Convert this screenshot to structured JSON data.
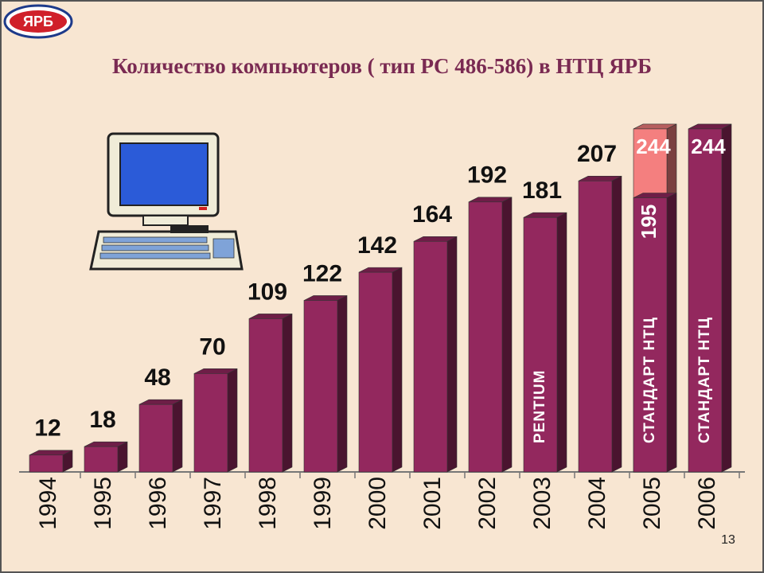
{
  "logo": "ЯРБ",
  "page_number": "13",
  "chart_data": {
    "type": "bar3d",
    "title": "Количество компьютеров ( тип PC 486-586) в НТЦ ЯРБ",
    "categories": [
      "1994",
      "1995",
      "1996",
      "1997",
      "1998",
      "1999",
      "2000",
      "2001",
      "2002",
      "2003",
      "2004",
      "2005",
      "2006"
    ],
    "values": [
      12,
      18,
      48,
      70,
      109,
      122,
      142,
      164,
      192,
      181,
      207,
      244,
      244
    ],
    "lower_values": [
      null,
      null,
      null,
      null,
      null,
      null,
      null,
      null,
      null,
      null,
      null,
      195,
      null
    ],
    "bar_labels": [
      null,
      null,
      null,
      null,
      null,
      null,
      null,
      null,
      null,
      "PENTIUM",
      null,
      "СТАНДАРТ НТЦ",
      "СТАНДАРТ НТЦ"
    ],
    "color": "#93285e",
    "upper_color": "#f47f7f",
    "ylim": [
      0,
      300
    ]
  }
}
